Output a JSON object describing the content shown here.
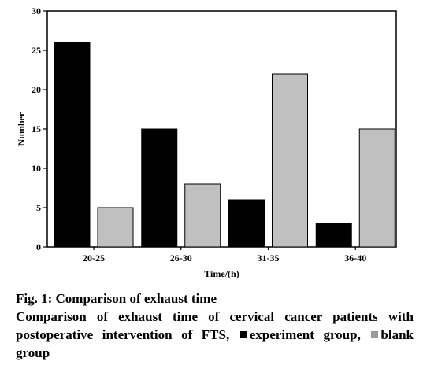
{
  "chart_data": {
    "type": "bar",
    "categories": [
      "20-25",
      "26-30",
      "31-35",
      "36-40"
    ],
    "series": [
      {
        "values": [
          26,
          15,
          6,
          3
        ],
        "color": "#000000"
      },
      {
        "values": [
          5,
          8,
          22,
          15
        ],
        "color": "#c0c0c0"
      }
    ],
    "xlabel": "Time/(h)",
    "ylabel": "Number",
    "ylim": [
      0,
      30
    ],
    "yticks": [
      0,
      5,
      10,
      15,
      20,
      25,
      30
    ],
    "grid": false
  },
  "caption": {
    "figure_title": "Fig. 1: Comparison of exhaust time",
    "description_text": "Comparison of exhaust time of cervical cancer patients with postoperative intervention of FTS,",
    "legend_experiment": "experiment group,",
    "legend_blank": "blank group",
    "experiment_color": "#000000",
    "blank_color": "#9a9a9a"
  }
}
